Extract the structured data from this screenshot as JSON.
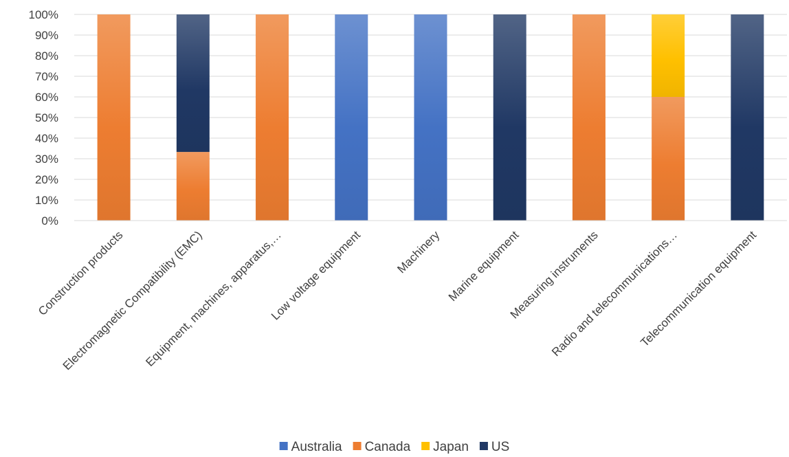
{
  "chart_data": {
    "type": "bar",
    "stacked": "percent",
    "categories": [
      "Construction products",
      "Electromagnetic Compatibility (EMC)",
      "Equipment, machines, apparatus,…",
      "Low voltage equipment",
      "Machinery",
      "Marine equipment",
      "Measuring instruments",
      "Radio and telecommunications…",
      "Telecommunication equipment"
    ],
    "series": [
      {
        "name": "Australia",
        "values": [
          0,
          0,
          0,
          100,
          100,
          0,
          0,
          0,
          0
        ]
      },
      {
        "name": "Canada",
        "values": [
          100,
          33.3,
          100,
          0,
          0,
          0,
          100,
          60,
          0
        ]
      },
      {
        "name": "Japan",
        "values": [
          0,
          0,
          0,
          0,
          0,
          0,
          0,
          40,
          0
        ]
      },
      {
        "name": "US",
        "values": [
          0,
          66.7,
          0,
          0,
          0,
          100,
          0,
          0,
          100
        ]
      }
    ],
    "yticks": [
      "0%",
      "10%",
      "20%",
      "30%",
      "40%",
      "50%",
      "60%",
      "70%",
      "80%",
      "90%",
      "100%"
    ],
    "ylim": [
      0,
      100
    ],
    "grid": true,
    "legend_position": "bottom",
    "title": "",
    "xlabel": "",
    "ylabel": ""
  },
  "colors": {
    "Australia": "#4472C4",
    "Canada": "#ED7D31",
    "Japan": "#FFC000",
    "US": "#203864",
    "gridline": "#D9D9D9",
    "text": "#404040"
  }
}
